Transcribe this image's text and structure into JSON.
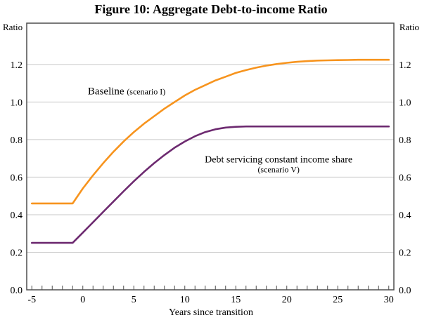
{
  "chart_data": {
    "type": "line",
    "title": "Figure 10: Aggregate Debt-to-income Ratio",
    "xlabel": "Years since transition",
    "ylabel_left": "Ratio",
    "ylabel_right": "Ratio",
    "xlim": [
      -5.5,
      30.5
    ],
    "ylim": [
      0,
      1.42
    ],
    "y_ticks": [
      0.0,
      0.2,
      0.4,
      0.6,
      0.8,
      1.0,
      1.2
    ],
    "x_major_ticks": [
      -5,
      0,
      5,
      10,
      15,
      20,
      25,
      30
    ],
    "x_minor": {
      "start": -5,
      "end": 30,
      "step": 1
    },
    "grid": "horizontal",
    "frame_color": "#4d4d4d",
    "grid_color": "#c9c9c9",
    "x": [
      -5,
      -4,
      -3,
      -2,
      -1,
      0,
      1,
      2,
      3,
      4,
      5,
      6,
      7,
      8,
      9,
      10,
      11,
      12,
      13,
      14,
      15,
      16,
      17,
      18,
      19,
      20,
      21,
      22,
      23,
      24,
      25,
      26,
      27,
      28,
      29,
      30
    ],
    "series": [
      {
        "name": "Baseline",
        "scenario": "(scenario I)",
        "color": "#F7941E",
        "values": [
          0.46,
          0.46,
          0.46,
          0.46,
          0.46,
          0.54,
          0.61,
          0.675,
          0.735,
          0.79,
          0.84,
          0.885,
          0.925,
          0.965,
          1.0,
          1.035,
          1.065,
          1.09,
          1.115,
          1.135,
          1.155,
          1.17,
          1.183,
          1.194,
          1.202,
          1.209,
          1.214,
          1.218,
          1.221,
          1.222,
          1.223,
          1.224,
          1.225,
          1.225,
          1.225,
          1.225
        ]
      },
      {
        "name": "Debt servicing constant income share",
        "scenario": "(scenario V)",
        "color": "#6D2A70",
        "values": [
          0.25,
          0.25,
          0.25,
          0.25,
          0.25,
          0.305,
          0.36,
          0.415,
          0.47,
          0.525,
          0.578,
          0.628,
          0.675,
          0.718,
          0.757,
          0.79,
          0.818,
          0.84,
          0.855,
          0.864,
          0.868,
          0.87,
          0.87,
          0.87,
          0.87,
          0.87,
          0.87,
          0.87,
          0.87,
          0.87,
          0.87,
          0.87,
          0.87,
          0.87,
          0.87,
          0.87
        ]
      }
    ],
    "annotations": [
      {
        "text": "Baseline",
        "sub": "(scenario I)",
        "x": 4.3,
        "y": 1.06,
        "layout": "inline",
        "color": "#F7941E"
      },
      {
        "text": "Debt servicing constant income share",
        "sub": "(scenario V)",
        "x": 19.2,
        "y": 0.7,
        "layout": "stacked",
        "color": "#6D2A70"
      }
    ]
  }
}
